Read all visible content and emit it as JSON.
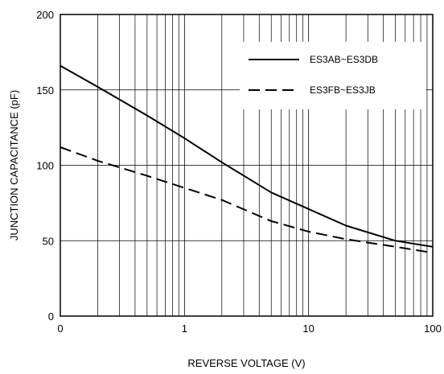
{
  "chart_data": {
    "type": "line",
    "title": "",
    "xlabel": "REVERSE VOLTAGE (V)",
    "ylabel": "JUNCTION CAPACITANCE  (pF)",
    "x_scale": "log",
    "x_note": "leftmost tick is printed as 0 at the position of 0.1",
    "xlim": [
      0.1,
      100
    ],
    "ylim": [
      0,
      200
    ],
    "x_ticks": [
      0.1,
      1,
      10,
      100
    ],
    "x_tick_labels": [
      "0",
      "1",
      "10",
      "100"
    ],
    "y_ticks": [
      0,
      50,
      100,
      150,
      200
    ],
    "y_tick_labels": [
      "0",
      "50",
      "100",
      "150",
      "200"
    ],
    "grid": true,
    "legend_position": "top-right",
    "series": [
      {
        "name": "ES3AB~ES3DB",
        "style": "solid",
        "x": [
          0.1,
          0.2,
          0.5,
          1,
          2,
          5,
          10,
          20,
          50,
          100
        ],
        "y": [
          166,
          152,
          133,
          118,
          102,
          82,
          71,
          60,
          50,
          46
        ]
      },
      {
        "name": "ES3FB~ES3JB",
        "style": "dashed",
        "x": [
          0.1,
          0.2,
          0.5,
          1,
          2,
          5,
          10,
          20,
          50,
          100
        ],
        "y": [
          112,
          103,
          93,
          85,
          77,
          63,
          56,
          51,
          46,
          42
        ]
      }
    ]
  }
}
